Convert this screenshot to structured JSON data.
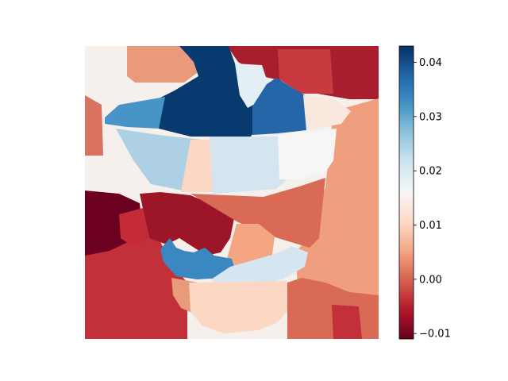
{
  "chart_data": {
    "type": "heatmap",
    "title": "",
    "xlabel": "",
    "ylabel": "",
    "grid": false,
    "colormap": "RdBu",
    "colorbar": {
      "range": [
        -0.011,
        0.043
      ],
      "ticks": [
        -0.01,
        0.0,
        0.01,
        0.02,
        0.03,
        0.04
      ],
      "tick_labels": [
        "−0.01",
        "0.00",
        "0.01",
        "0.02",
        "0.03",
        "0.04"
      ]
    },
    "regions": [
      {
        "name": "top-left-background",
        "value": 0.018,
        "color": "#f6f0ec"
      },
      {
        "name": "top-peach-block",
        "value": 0.007,
        "color": "#e99a7a"
      },
      {
        "name": "top-center-dark-blue",
        "value": 0.043,
        "color": "#083a70"
      },
      {
        "name": "top-right-red",
        "value": -0.008,
        "color": "#a81e2e"
      },
      {
        "name": "top-right-light-patch",
        "value": 0.021,
        "color": "#e4eef5"
      },
      {
        "name": "bowl-rim-left-blue",
        "value": 0.033,
        "color": "#4994c6"
      },
      {
        "name": "bowl-rim-center-dark",
        "value": 0.043,
        "color": "#083a70"
      },
      {
        "name": "bowl-rim-right-blue",
        "value": 0.037,
        "color": "#2466a8"
      },
      {
        "name": "bowl-rim-far-right",
        "value": 0.015,
        "color": "#fae8df"
      },
      {
        "name": "bowl-body-left",
        "value": 0.026,
        "color": "#aed0e5"
      },
      {
        "name": "bowl-body-center",
        "value": 0.022,
        "color": "#d4e5f0"
      },
      {
        "name": "bowl-body-right",
        "value": 0.018,
        "color": "#f6f6f6"
      },
      {
        "name": "left-margin-salmon",
        "value": 0.004,
        "color": "#d9715f"
      },
      {
        "name": "right-margin-salmon",
        "value": 0.008,
        "color": "#ef9f7e"
      },
      {
        "name": "bottom-left-darkest",
        "value": -0.011,
        "color": "#6b0021"
      },
      {
        "name": "lower-center-red",
        "value": -0.008,
        "color": "#9c1628"
      },
      {
        "name": "lower-blue-cup",
        "value": 0.032,
        "color": "#3a88bf"
      },
      {
        "name": "lower-light-rim",
        "value": 0.021,
        "color": "#d6e6f1"
      },
      {
        "name": "bottom-cup-peach",
        "value": 0.013,
        "color": "#fcd7c3"
      },
      {
        "name": "bottom-red-background",
        "value": -0.004,
        "color": "#c2303a"
      },
      {
        "name": "bottom-right-salmon",
        "value": 0.003,
        "color": "#d86a56"
      }
    ]
  }
}
